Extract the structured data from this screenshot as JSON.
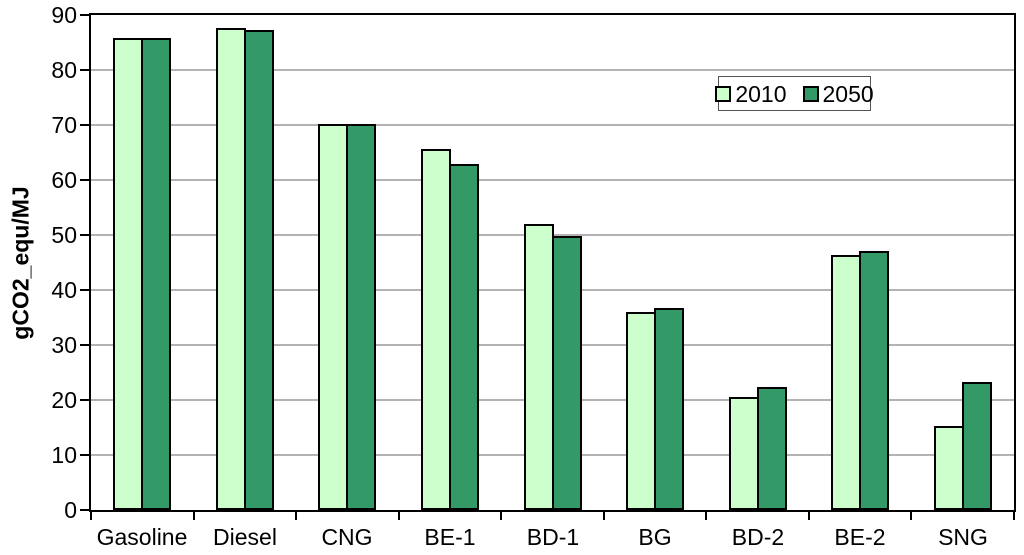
{
  "chart_data": {
    "type": "bar",
    "title": "",
    "xlabel": "",
    "ylabel": "gCO2_equ/MJ",
    "ylim": [
      0,
      90
    ],
    "yticks": [
      0,
      10,
      20,
      30,
      40,
      50,
      60,
      70,
      80,
      90
    ],
    "grid": true,
    "legend_position": "inside-top-right",
    "categories": [
      "Gasoline",
      "Diesel",
      "CNG",
      "BE-1",
      "BD-1",
      "BG",
      "BD-2",
      "BE-2",
      "SNG"
    ],
    "series": [
      {
        "name": "2010",
        "color": "#CCFFCC",
        "values": [
          85.9,
          87.6,
          70.2,
          65.7,
          52.0,
          36.0,
          20.5,
          46.4,
          15.3
        ]
      },
      {
        "name": "2050",
        "color": "#339966",
        "values": [
          85.9,
          87.3,
          70.2,
          62.9,
          49.9,
          36.8,
          22.3,
          47.1,
          23.3
        ]
      }
    ],
    "colors": {
      "bar_border": "#000000",
      "gridline": "#B3B3B3",
      "axis": "#000000",
      "background": "#FFFFFF"
    }
  }
}
